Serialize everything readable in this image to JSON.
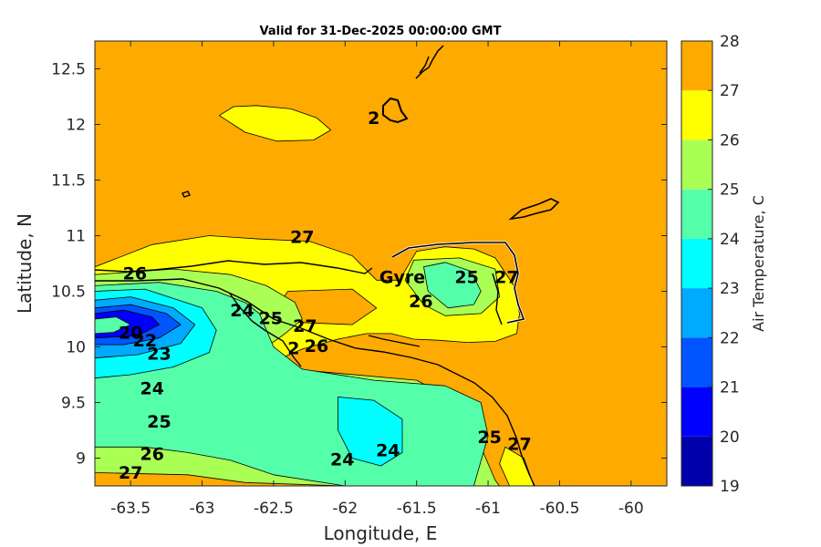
{
  "chart_data": {
    "type": "filled_contour",
    "title": "Valid for 31-Dec-2025 00:00:00 GMT",
    "xlabel": "Longitude, E",
    "ylabel": "Latitude, N",
    "xlim": [
      -63.75,
      -59.75
    ],
    "ylim": [
      8.75,
      12.75
    ],
    "xticks": [
      -63.5,
      -63,
      -62.5,
      -62,
      -61.5,
      -61,
      -60.5,
      -60
    ],
    "xtick_labels": [
      "-63.5",
      "-63",
      "-62.5",
      "-62",
      "-61.5",
      "-61",
      "-60.5",
      "-60"
    ],
    "yticks": [
      9,
      9.5,
      10,
      10.5,
      11,
      11.5,
      12,
      12.5
    ],
    "ytick_labels": [
      "9",
      "9.5",
      "10",
      "10.5",
      "11",
      "11.5",
      "12",
      "12.5"
    ],
    "colorbar": {
      "label": "Air Temperature, C",
      "levels": [
        19,
        20,
        21,
        22,
        23,
        24,
        25,
        26,
        27,
        28
      ],
      "level_labels": [
        "19",
        "20",
        "21",
        "22",
        "23",
        "24",
        "25",
        "26",
        "27",
        "28"
      ],
      "colors": [
        "#0000aa",
        "#0000ff",
        "#0055ff",
        "#00aaff",
        "#00ffff",
        "#55ffaa",
        "#aaff55",
        "#ffff00",
        "#ffaa00",
        "#ff5500"
      ]
    },
    "background_level_color": "#ffaa00",
    "contour_labels": [
      {
        "text": "27",
        "lon": -62.3,
        "lat": 10.98
      },
      {
        "text": "26",
        "lon": -63.47,
        "lat": 10.65
      },
      {
        "text": "Gyre",
        "lon": -61.6,
        "lat": 10.62
      },
      {
        "text": "25",
        "lon": -61.15,
        "lat": 10.62
      },
      {
        "text": "27",
        "lon": -60.87,
        "lat": 10.62
      },
      {
        "text": "26",
        "lon": -61.47,
        "lat": 10.4
      },
      {
        "text": "24",
        "lon": -62.72,
        "lat": 10.32
      },
      {
        "text": "25",
        "lon": -62.52,
        "lat": 10.25
      },
      {
        "text": "27",
        "lon": -62.28,
        "lat": 10.18
      },
      {
        "text": "26",
        "lon": -62.2,
        "lat": 10.0
      },
      {
        "text": "2",
        "lon": -62.36,
        "lat": 9.98
      },
      {
        "text": "20",
        "lon": -63.5,
        "lat": 10.12
      },
      {
        "text": "22",
        "lon": -63.4,
        "lat": 10.05
      },
      {
        "text": "23",
        "lon": -63.3,
        "lat": 9.93
      },
      {
        "text": "24",
        "lon": -63.35,
        "lat": 9.62
      },
      {
        "text": "25",
        "lon": -63.3,
        "lat": 9.32
      },
      {
        "text": "26",
        "lon": -63.35,
        "lat": 9.03
      },
      {
        "text": "27",
        "lon": -63.5,
        "lat": 8.86
      },
      {
        "text": "24",
        "lon": -62.02,
        "lat": 8.98
      },
      {
        "text": "24",
        "lon": -61.7,
        "lat": 9.06
      },
      {
        "text": "25",
        "lon": -60.99,
        "lat": 9.18
      },
      {
        "text": "27",
        "lon": -60.78,
        "lat": 9.12
      },
      {
        "text": "2",
        "lon": -61.8,
        "lat": 12.05
      }
    ],
    "regions": [
      {
        "level": 26,
        "lon": [
          -62.88,
          -62.78,
          -62.62,
          -62.38,
          -62.2,
          -62.1,
          -62.22,
          -62.48,
          -62.7
        ],
        "lat": [
          12.08,
          12.16,
          12.17,
          12.14,
          12.06,
          11.95,
          11.86,
          11.85,
          11.93
        ]
      },
      {
        "level": 26,
        "lon": [
          -63.75,
          -63.35,
          -62.95,
          -62.6,
          -62.25,
          -61.95,
          -61.78,
          -61.62,
          -61.5,
          -61.3,
          -61.1,
          -60.95,
          -60.82,
          -60.78,
          -60.8,
          -60.95,
          -61.15,
          -61.35,
          -61.52,
          -61.68,
          -61.85,
          -62.05,
          -62.3,
          -62.5,
          -62.75,
          -63.0,
          -63.3,
          -63.75
        ],
        "lat": [
          10.72,
          10.92,
          11.0,
          10.97,
          10.95,
          10.82,
          10.6,
          10.6,
          10.86,
          10.9,
          10.88,
          10.8,
          10.55,
          10.3,
          10.12,
          10.05,
          10.04,
          10.06,
          10.07,
          10.12,
          10.12,
          10.07,
          9.98,
          9.87,
          9.77,
          9.68,
          9.6,
          9.55
        ]
      },
      {
        "level": 26,
        "lon": [
          -60.75,
          -60.88,
          -60.92,
          -60.85,
          -60.68
        ],
        "lat": [
          9.0,
          9.1,
          8.95,
          8.75,
          8.75
        ]
      },
      {
        "level": 27,
        "lon": [
          -62.4,
          -61.95,
          -61.78,
          -61.95,
          -62.32,
          -62.48
        ],
        "lat": [
          10.5,
          10.52,
          10.35,
          10.2,
          10.22,
          10.35
        ]
      },
      {
        "level": 25,
        "lon": [
          -63.75,
          -63.2,
          -62.8,
          -62.55,
          -62.35,
          -62.3,
          -62.42,
          -62.55,
          -62.75,
          -63.0,
          -63.35,
          -63.75
        ],
        "lat": [
          10.65,
          10.7,
          10.65,
          10.55,
          10.4,
          10.25,
          10.12,
          10.0,
          9.88,
          9.8,
          9.74,
          9.7
        ]
      },
      {
        "level": 25,
        "lon": [
          -61.52,
          -61.2,
          -60.95,
          -60.92,
          -61.05,
          -61.3,
          -61.45,
          -61.58
        ],
        "lat": [
          10.78,
          10.8,
          10.7,
          10.45,
          10.3,
          10.28,
          10.38,
          10.6
        ]
      },
      {
        "level": 25,
        "lon": [
          -63.75,
          -63.0,
          -62.2,
          -61.5,
          -61.2,
          -61.05,
          -61.0,
          -60.95,
          -60.92,
          -61.1,
          -62.0,
          -62.7,
          -63.1,
          -63.75
        ],
        "lat": [
          9.85,
          9.82,
          9.78,
          9.7,
          9.5,
          9.1,
          8.95,
          8.8,
          8.75,
          8.75,
          8.75,
          8.78,
          8.85,
          8.87
        ]
      },
      {
        "level": 24,
        "lon": [
          -63.75,
          -63.3,
          -62.9,
          -62.7,
          -62.6,
          -62.55,
          -62.5,
          -62.3,
          -61.8,
          -61.3,
          -61.05,
          -61.0,
          -61.1,
          -62.0,
          -62.5,
          -62.8,
          -63.1,
          -63.4,
          -63.75
        ],
        "lat": [
          10.55,
          10.58,
          10.5,
          10.4,
          10.3,
          10.15,
          10.0,
          9.8,
          9.7,
          9.65,
          9.5,
          9.2,
          8.75,
          8.75,
          8.85,
          8.98,
          9.05,
          9.1,
          9.1
        ]
      },
      {
        "level": 24,
        "lon": [
          -61.45,
          -61.3,
          -61.12,
          -61.05,
          -61.1,
          -61.28,
          -61.42
        ],
        "lat": [
          10.72,
          10.76,
          10.68,
          10.5,
          10.38,
          10.35,
          10.5
        ]
      },
      {
        "level": 23,
        "lon": [
          -63.75,
          -63.4,
          -63.0,
          -62.9,
          -62.95,
          -63.2,
          -63.5,
          -63.75
        ],
        "lat": [
          10.5,
          10.52,
          10.35,
          10.15,
          9.95,
          9.82,
          9.75,
          9.72
        ]
      },
      {
        "level": 23,
        "lon": [
          -62.05,
          -61.8,
          -61.6,
          -61.6,
          -61.75,
          -61.95,
          -62.05
        ],
        "lat": [
          9.55,
          9.52,
          9.35,
          9.05,
          8.93,
          9.0,
          9.25
        ]
      },
      {
        "level": 22,
        "lon": [
          -63.75,
          -63.5,
          -63.2,
          -63.05,
          -63.15,
          -63.45,
          -63.75
        ],
        "lat": [
          10.42,
          10.45,
          10.35,
          10.2,
          10.03,
          9.93,
          9.9
        ]
      },
      {
        "level": 21,
        "lon": [
          -63.75,
          -63.5,
          -63.25,
          -63.15,
          -63.3,
          -63.55,
          -63.75
        ],
        "lat": [
          10.35,
          10.38,
          10.3,
          10.2,
          10.08,
          10.02,
          10.02
        ]
      },
      {
        "level": 20,
        "lon": [
          -63.75,
          -63.55,
          -63.35,
          -63.3,
          -63.45,
          -63.75
        ],
        "lat": [
          10.3,
          10.33,
          10.27,
          10.2,
          10.1,
          10.08
        ]
      },
      {
        "level": 24,
        "lon": [
          -63.75,
          -63.6,
          -63.5,
          -63.62,
          -63.75
        ],
        "lat": [
          10.25,
          10.27,
          10.2,
          10.13,
          10.12
        ]
      }
    ]
  }
}
